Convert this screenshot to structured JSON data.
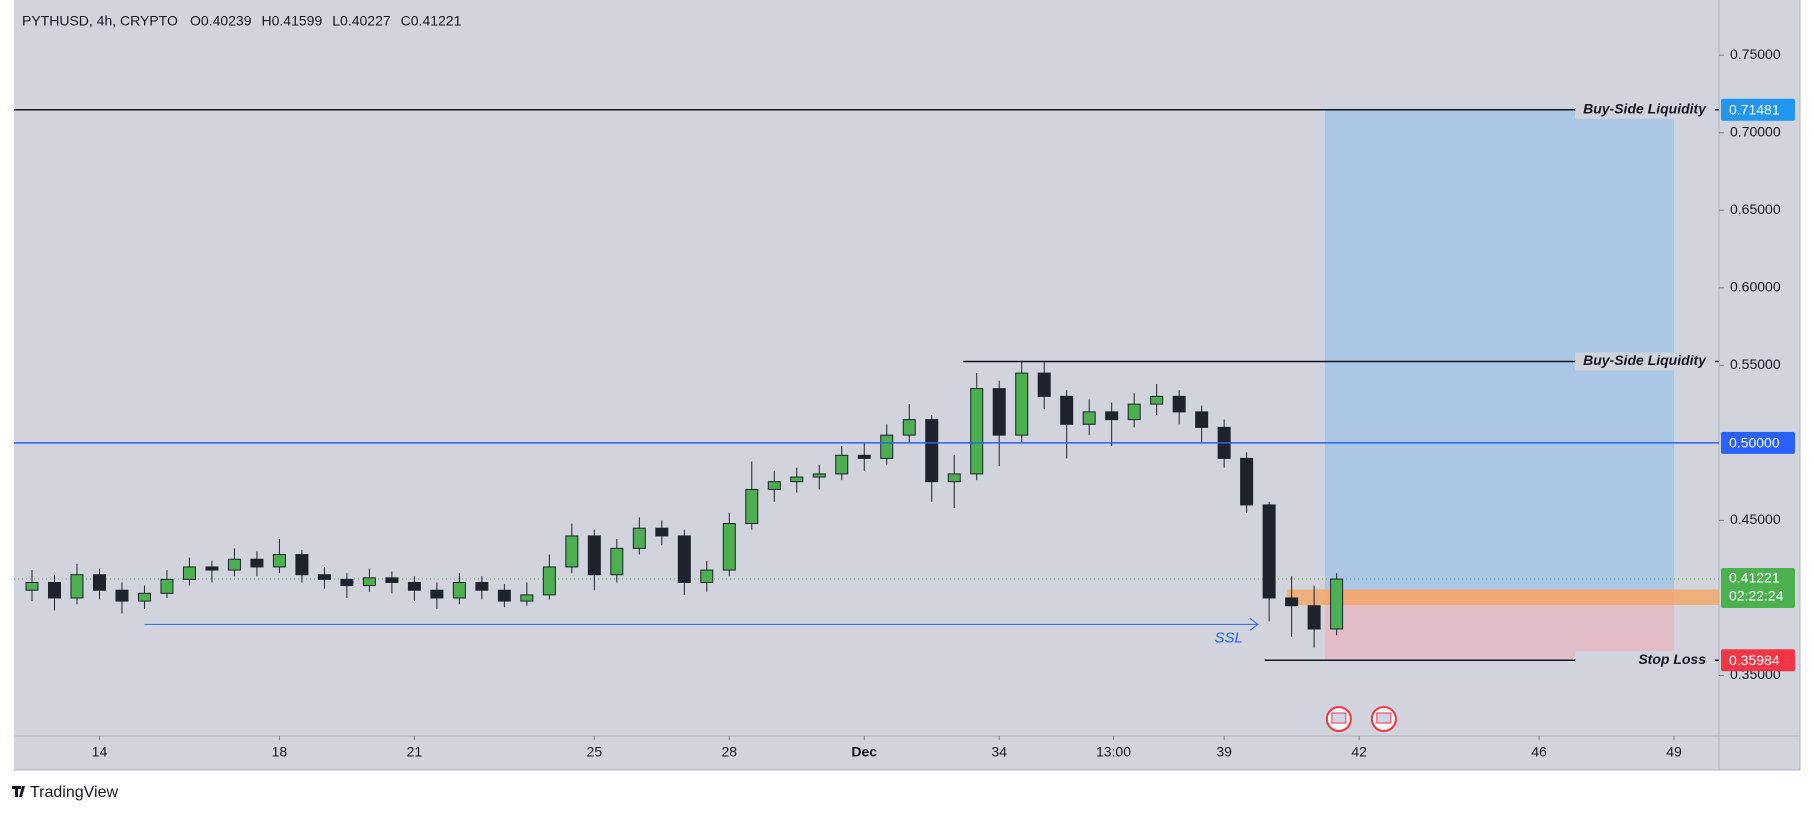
{
  "chart_data": {
    "type": "candlestick",
    "symbol": "PYTHUSD, 4h, CRYPTO",
    "ohlc_labels": [
      "O",
      "H",
      "L",
      "C"
    ],
    "ohlc_values": [
      0.40239,
      0.41599,
      0.40227,
      0.41221
    ],
    "up_color": "#4caf50",
    "down_color": "#1e222d",
    "x": [
      12.5,
      13,
      13.5,
      14,
      14.5,
      15,
      15.5,
      16,
      16.5,
      17,
      17.5,
      18,
      18.5,
      19,
      19.5,
      20,
      20.5,
      21,
      21.5,
      22,
      22.5,
      23,
      23.5,
      24,
      24.5,
      25,
      25.5,
      26,
      26.5,
      27,
      27.5,
      28,
      28.5,
      29,
      29.5,
      30,
      30.5,
      31,
      31.5,
      32,
      32.5,
      33,
      33.5,
      34,
      34.5,
      35,
      35.5,
      36,
      36.5,
      37,
      37.5,
      38,
      38.5,
      39,
      39.5,
      40,
      40.5,
      41,
      41.5
    ],
    "open": [
      0.405,
      0.41,
      0.4,
      0.415,
      0.405,
      0.398,
      0.403,
      0.412,
      0.42,
      0.418,
      0.425,
      0.42,
      0.428,
      0.415,
      0.412,
      0.408,
      0.413,
      0.41,
      0.405,
      0.4,
      0.41,
      0.405,
      0.398,
      0.402,
      0.42,
      0.44,
      0.415,
      0.432,
      0.445,
      0.44,
      0.41,
      0.418,
      0.448,
      0.47,
      0.475,
      0.478,
      0.48,
      0.492,
      0.49,
      0.505,
      0.515,
      0.475,
      0.48,
      0.535,
      0.505,
      0.545,
      0.53,
      0.512,
      0.52,
      0.515,
      0.525,
      0.53,
      0.52,
      0.51,
      0.49,
      0.46,
      0.4,
      0.395,
      0.38
    ],
    "high": [
      0.418,
      0.415,
      0.422,
      0.419,
      0.41,
      0.408,
      0.418,
      0.426,
      0.424,
      0.432,
      0.43,
      0.438,
      0.431,
      0.42,
      0.416,
      0.419,
      0.417,
      0.414,
      0.41,
      0.416,
      0.414,
      0.409,
      0.41,
      0.428,
      0.448,
      0.444,
      0.438,
      0.452,
      0.45,
      0.444,
      0.424,
      0.455,
      0.488,
      0.482,
      0.484,
      0.486,
      0.498,
      0.5,
      0.512,
      0.525,
      0.518,
      0.492,
      0.545,
      0.54,
      0.553,
      0.552,
      0.534,
      0.528,
      0.526,
      0.532,
      0.538,
      0.534,
      0.524,
      0.515,
      0.494,
      0.462,
      0.414,
      0.408,
      0.41599
    ],
    "low": [
      0.398,
      0.392,
      0.396,
      0.399,
      0.39,
      0.393,
      0.4,
      0.408,
      0.41,
      0.414,
      0.414,
      0.416,
      0.41,
      0.406,
      0.4,
      0.404,
      0.403,
      0.398,
      0.393,
      0.396,
      0.399,
      0.394,
      0.395,
      0.399,
      0.416,
      0.405,
      0.41,
      0.428,
      0.434,
      0.402,
      0.404,
      0.414,
      0.444,
      0.462,
      0.468,
      0.47,
      0.476,
      0.482,
      0.486,
      0.5,
      0.462,
      0.458,
      0.476,
      0.485,
      0.5,
      0.522,
      0.49,
      0.505,
      0.498,
      0.51,
      0.518,
      0.512,
      0.5,
      0.484,
      0.455,
      0.385,
      0.375,
      0.368,
      0.376
    ],
    "close": [
      0.41,
      0.4,
      0.415,
      0.405,
      0.398,
      0.403,
      0.412,
      0.42,
      0.418,
      0.425,
      0.42,
      0.428,
      0.415,
      0.412,
      0.408,
      0.413,
      0.41,
      0.405,
      0.4,
      0.41,
      0.405,
      0.398,
      0.402,
      0.42,
      0.44,
      0.415,
      0.432,
      0.445,
      0.44,
      0.41,
      0.418,
      0.448,
      0.47,
      0.475,
      0.478,
      0.48,
      0.492,
      0.49,
      0.505,
      0.515,
      0.475,
      0.48,
      0.535,
      0.505,
      0.545,
      0.53,
      0.512,
      0.52,
      0.515,
      0.525,
      0.53,
      0.52,
      0.51,
      0.49,
      0.46,
      0.4,
      0.395,
      0.38,
      0.41221
    ],
    "xlim": [
      12.1,
      50
    ],
    "xticks": [
      14,
      18,
      21,
      25,
      28,
      {
        "value": 31,
        "label": "Dec"
      },
      34,
      {
        "value": 36.54,
        "label": "13:00"
      },
      39,
      42,
      46,
      49
    ],
    "ylim": [
      0.311,
      0.783
    ],
    "yticks": [
      {
        "value": 0.35,
        "label": "0.35000"
      },
      {
        "value": 0.45,
        "label": "0.45000"
      },
      {
        "value": 0.55,
        "label": "0.55000"
      },
      {
        "value": 0.6,
        "label": "0.60000"
      },
      {
        "value": 0.65,
        "label": "0.65000"
      },
      {
        "value": 0.7,
        "label": "0.70000"
      },
      {
        "value": 0.75,
        "label": "0.75000"
      }
    ],
    "levels": [
      {
        "label": "Buy-Side Liquidity",
        "value": 0.71481,
        "color": "#131722",
        "box": "#2196f3"
      },
      {
        "label": "Buy-Side Liquidity",
        "value": 0.5525,
        "start": 33.2,
        "color": "#131722"
      },
      {
        "value": 0.5,
        "value_label": "0.50000",
        "color": "#2962ff",
        "box": "#2962ff"
      },
      {
        "label": "Stop Loss",
        "value": 0.35984,
        "start": 39.9,
        "color": "#131722",
        "box": "#f23645"
      }
    ],
    "last_price": {
      "value": 0.41221,
      "countdown": "02:22:24",
      "color": "#4caf50"
    },
    "position": {
      "start": 41.24,
      "end": 49,
      "entry": 0.4055,
      "target": 0.71481,
      "stop": 0.35984
    },
    "zone": {
      "start": 40.4,
      "top": 0.4055,
      "bottom": 0.3955
    },
    "ssl": {
      "label": "SSL",
      "value": 0.383,
      "start": 15.0,
      "end": 39.75
    },
    "events": [
      41.55,
      42.55
    ],
    "footer": "TradingView"
  }
}
